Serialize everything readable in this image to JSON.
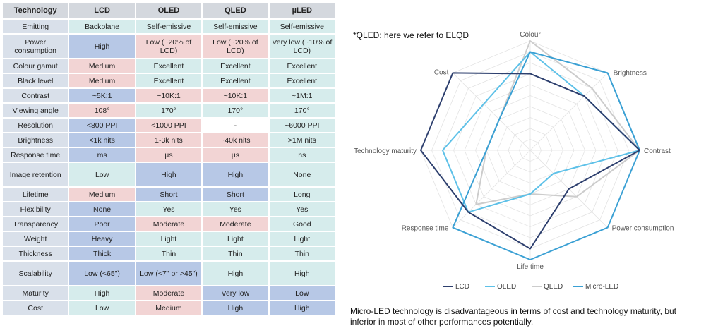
{
  "table": {
    "headers": [
      "Technology",
      "LCD",
      "OLED",
      "QLED",
      "µLED"
    ],
    "rows": [
      {
        "label": "Emitting",
        "cells": [
          [
            "Backplane",
            "teal"
          ],
          [
            "Self-emissive",
            "teal"
          ],
          [
            "Self-emissive",
            "teal"
          ],
          [
            "Self-emissive",
            "teal"
          ]
        ]
      },
      {
        "label": "Power consumption",
        "tall": true,
        "cells": [
          [
            "High",
            "blue"
          ],
          [
            "Low (~20% of LCD)",
            "pink"
          ],
          [
            "Low (~20% of LCD)",
            "pink"
          ],
          [
            "Very low (~10% of LCD)",
            "teal"
          ]
        ]
      },
      {
        "label": "Colour gamut",
        "cells": [
          [
            "Medium",
            "pink"
          ],
          [
            "Excellent",
            "teal"
          ],
          [
            "Excellent",
            "teal"
          ],
          [
            "Excellent",
            "teal"
          ]
        ]
      },
      {
        "label": "Black level",
        "cells": [
          [
            "Medium",
            "pink"
          ],
          [
            "Excellent",
            "teal"
          ],
          [
            "Excellent",
            "teal"
          ],
          [
            "Excellent",
            "teal"
          ]
        ]
      },
      {
        "label": "Contrast",
        "cells": [
          [
            "~5K:1",
            "blue"
          ],
          [
            "~10K:1",
            "pink"
          ],
          [
            "~10K:1",
            "pink"
          ],
          [
            "~1M:1",
            "teal"
          ]
        ]
      },
      {
        "label": "Viewing angle",
        "cells": [
          [
            "108°",
            "pink"
          ],
          [
            "170°",
            "teal"
          ],
          [
            "170°",
            "teal"
          ],
          [
            "170°",
            "teal"
          ]
        ]
      },
      {
        "label": "Resolution",
        "cells": [
          [
            "<800 PPI",
            "blue"
          ],
          [
            "<1000 PPI",
            "pink"
          ],
          [
            "-",
            "white"
          ],
          [
            "~6000 PPI",
            "teal"
          ]
        ]
      },
      {
        "label": "Brightness",
        "cells": [
          [
            "<1k nits",
            "blue"
          ],
          [
            "1-3k nits",
            "pink"
          ],
          [
            "~40k nits",
            "pink"
          ],
          [
            ">1M nits",
            "teal"
          ]
        ]
      },
      {
        "label": "Response time",
        "cells": [
          [
            "ms",
            "blue"
          ],
          [
            "µs",
            "pink"
          ],
          [
            "µs",
            "pink"
          ],
          [
            "ns",
            "teal"
          ]
        ]
      },
      {
        "label": "Image retention",
        "tall": true,
        "cells": [
          [
            "Low",
            "teal"
          ],
          [
            "High",
            "blue"
          ],
          [
            "High",
            "blue"
          ],
          [
            "None",
            "teal"
          ]
        ]
      },
      {
        "label": "Lifetime",
        "cells": [
          [
            "Medium",
            "pink"
          ],
          [
            "Short",
            "blue"
          ],
          [
            "Short",
            "blue"
          ],
          [
            "Long",
            "teal"
          ]
        ]
      },
      {
        "label": "Flexibility",
        "cells": [
          [
            "None",
            "blue"
          ],
          [
            "Yes",
            "teal"
          ],
          [
            "Yes",
            "teal"
          ],
          [
            "Yes",
            "teal"
          ]
        ]
      },
      {
        "label": "Transparency",
        "cells": [
          [
            "Poor",
            "blue"
          ],
          [
            "Moderate",
            "pink"
          ],
          [
            "Moderate",
            "pink"
          ],
          [
            "Good",
            "teal"
          ]
        ]
      },
      {
        "label": "Weight",
        "cells": [
          [
            "Heavy",
            "blue"
          ],
          [
            "Light",
            "teal"
          ],
          [
            "Light",
            "teal"
          ],
          [
            "Light",
            "teal"
          ]
        ]
      },
      {
        "label": "Thickness",
        "cells": [
          [
            "Thick",
            "blue"
          ],
          [
            "Thin",
            "teal"
          ],
          [
            "Thin",
            "teal"
          ],
          [
            "Thin",
            "teal"
          ]
        ]
      },
      {
        "label": "Scalability",
        "tall": true,
        "cells": [
          [
            "Low (<65\")",
            "blue"
          ],
          [
            "Low (<7\" or >45\")",
            "blue"
          ],
          [
            "High",
            "teal"
          ],
          [
            "High",
            "teal"
          ]
        ]
      },
      {
        "label": "Maturity",
        "cells": [
          [
            "High",
            "teal"
          ],
          [
            "Moderate",
            "pink"
          ],
          [
            "Very low",
            "blue"
          ],
          [
            "Low",
            "blue"
          ]
        ]
      },
      {
        "label": "Cost",
        "cells": [
          [
            "Low",
            "teal"
          ],
          [
            "Medium",
            "pink"
          ],
          [
            "High",
            "blue"
          ],
          [
            "High",
            "blue"
          ]
        ]
      }
    ]
  },
  "cell_colors": {
    "blue": "#b7c8e6",
    "pink": "#f2d4d4",
    "teal": "#d6ecec",
    "white": "#ffffff"
  },
  "notes": {
    "top": "*QLED: here we refer to ELQD",
    "bottom": "Micro-LED technology is disadvantageous in terms of cost and technology maturity, but inferior in most of other performances potentially."
  },
  "chart_data": {
    "type": "radar",
    "axes": [
      "Colour",
      "Brightness",
      "Contrast",
      "Power consumption",
      "Life time",
      "Response time",
      "Technology maturity",
      "Cost"
    ],
    "levels": 10,
    "range": [
      0,
      10
    ],
    "grid": true,
    "legend_position": "bottom",
    "series": [
      {
        "name": "LCD",
        "color": "#2d3f6e",
        "values": [
          7,
          7,
          10,
          5,
          9,
          8,
          10,
          10
        ]
      },
      {
        "name": "OLED",
        "color": "#5ec1e8",
        "values": [
          9,
          7,
          10,
          3,
          4,
          8,
          8,
          6
        ]
      },
      {
        "name": "QLED",
        "color": "#cccccc",
        "values": [
          10,
          8,
          10,
          6,
          4,
          7,
          4,
          4
        ]
      },
      {
        "name": "Micro-LED",
        "color": "#3aa0d4",
        "values": [
          9,
          10,
          10,
          10,
          10,
          10,
          4,
          4
        ]
      }
    ]
  }
}
